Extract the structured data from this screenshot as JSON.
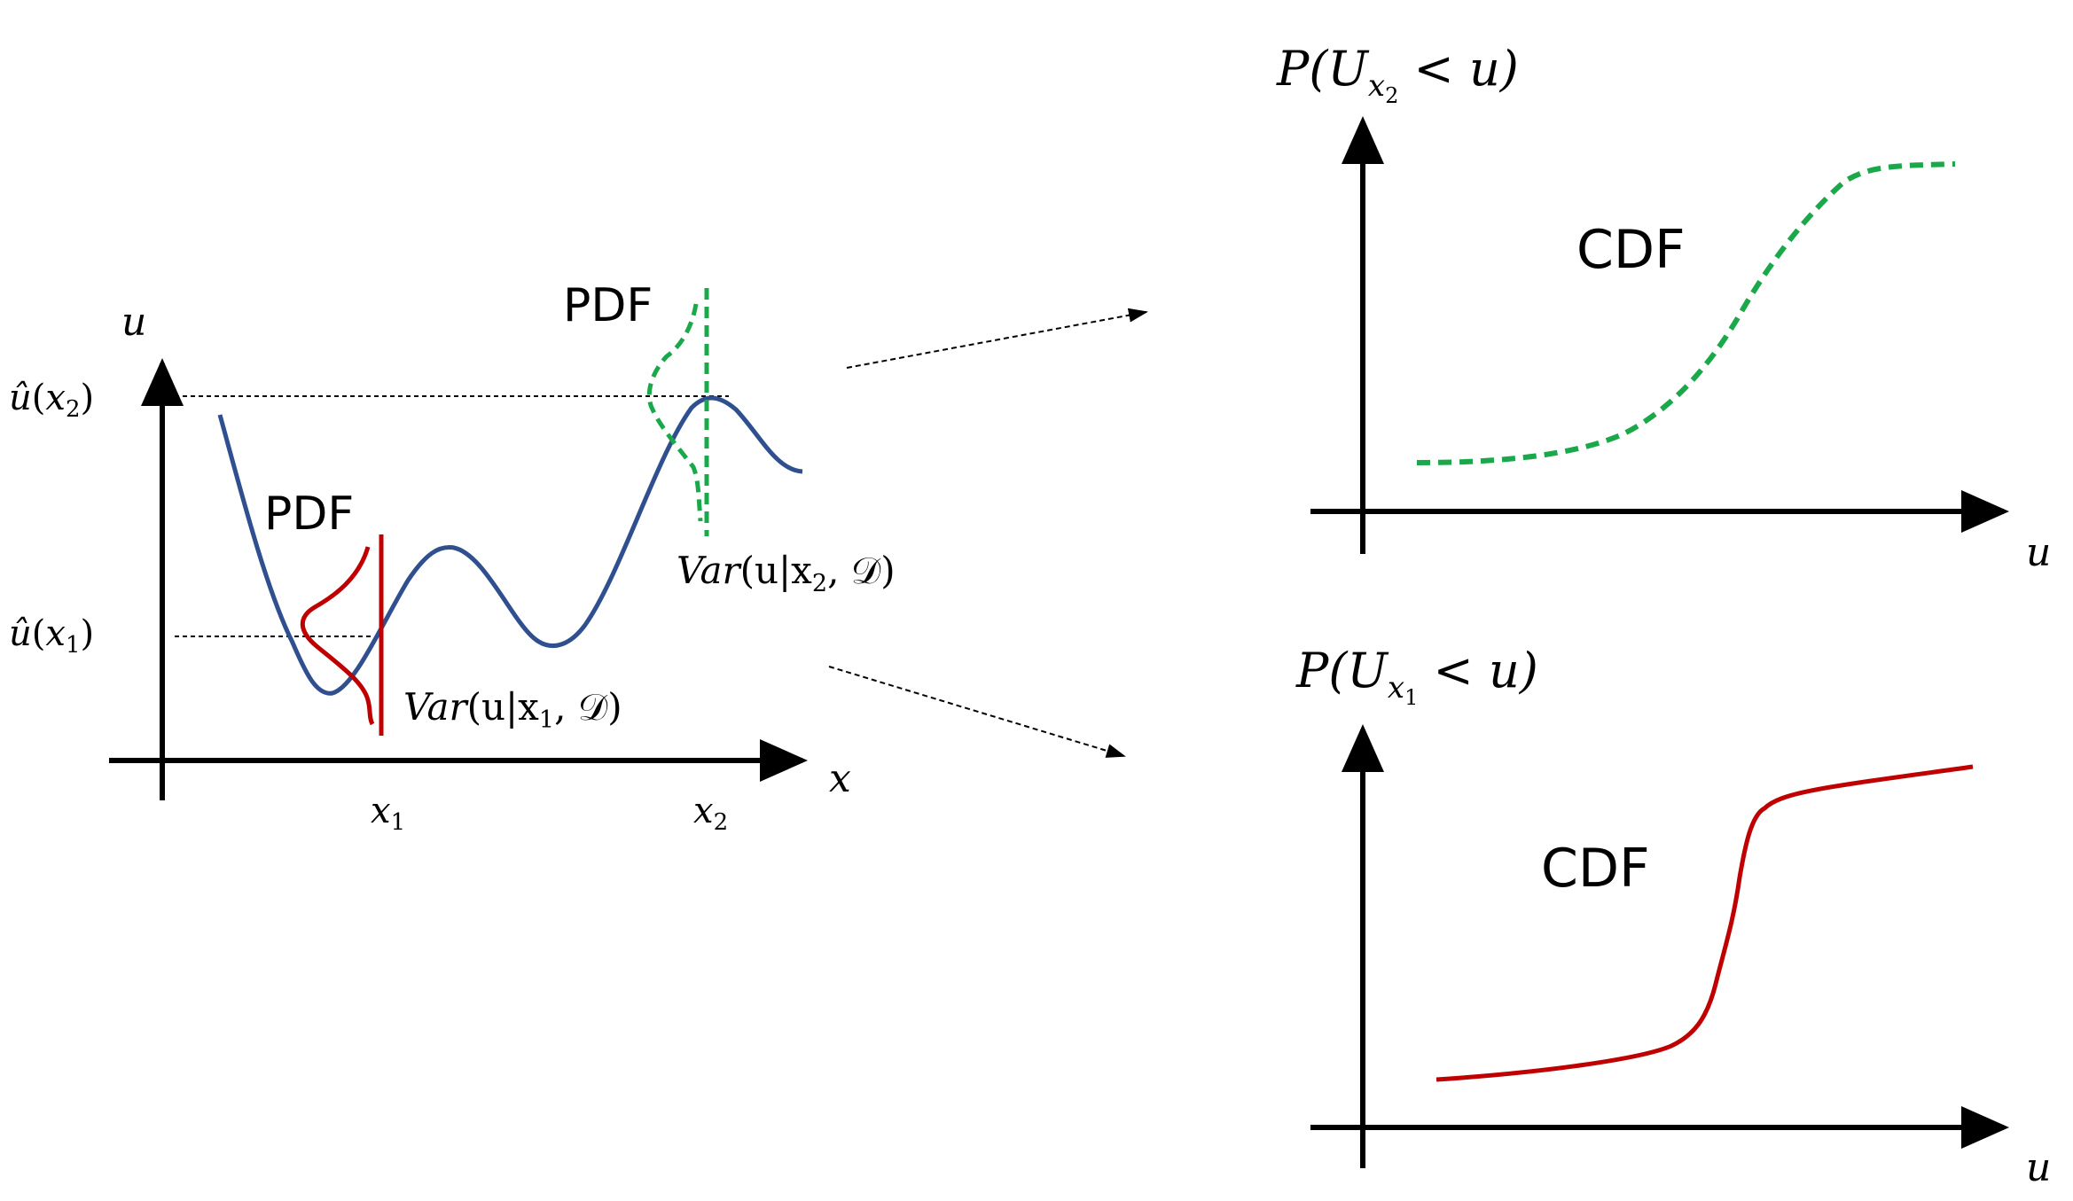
{
  "left_panel": {
    "y_axis_label": "u",
    "x_axis_label": "x",
    "tick_x1": {
      "base": "x",
      "sub": "1"
    },
    "tick_x2": {
      "base": "x",
      "sub": "2"
    },
    "uhat_x1": {
      "hat": "û",
      "open": "(",
      "base": "x",
      "sub": "1",
      "close": ")"
    },
    "uhat_x2": {
      "hat": "û",
      "open": "(",
      "base": "x",
      "sub": "2",
      "close": ")"
    },
    "pdf_label_1": "PDF",
    "pdf_label_2": "PDF",
    "var_x1": {
      "pre": "Var",
      "mid": "(u|x",
      "sub": "1",
      "post": ", 𝒟)"
    },
    "var_x2": {
      "pre": "Var",
      "mid": "(u|x",
      "sub": "2",
      "post": ", 𝒟)"
    }
  },
  "top_right": {
    "y_label": {
      "pre": "P(U",
      "base": "x",
      "sub": "2",
      "post": " < u)"
    },
    "x_axis_label": "u",
    "curve_label": "CDF"
  },
  "bottom_right": {
    "y_label": {
      "pre": "P(U",
      "base": "x",
      "sub": "1",
      "post": " < u)"
    },
    "x_axis_label": "u",
    "curve_label": "CDF"
  },
  "colors": {
    "mean_curve": "#2f4f8f",
    "x1_pdf": "#c00000",
    "x2_pdf": "#1aa84a",
    "axis": "#000000"
  }
}
